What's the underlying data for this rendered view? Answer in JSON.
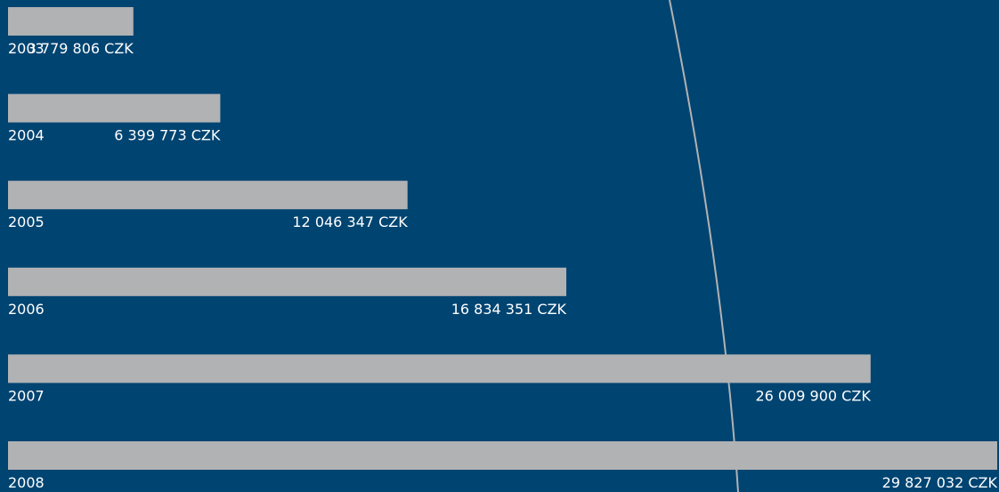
{
  "chart_data": {
    "type": "bar",
    "orientation": "horizontal",
    "categories": [
      "2003",
      "2004",
      "2005",
      "2006",
      "2007",
      "2008"
    ],
    "values": [
      3779806,
      6399773,
      12046347,
      16834351,
      26009900,
      29827032
    ],
    "value_labels": [
      "3 779 806 CZK",
      "6 399 773 CZK",
      "12 046 347 CZK",
      "16 834 351 CZK",
      "26 009 900 CZK",
      "29 827 032 CZK"
    ],
    "title": "",
    "xlabel": "",
    "ylabel": "",
    "xlim": [
      0,
      29827032
    ],
    "grid": false,
    "legend": "none"
  },
  "colors": {
    "background": "#004471",
    "bar": "#b1b2b4",
    "text": "#ffffff",
    "curve": "#b1b2b4"
  }
}
